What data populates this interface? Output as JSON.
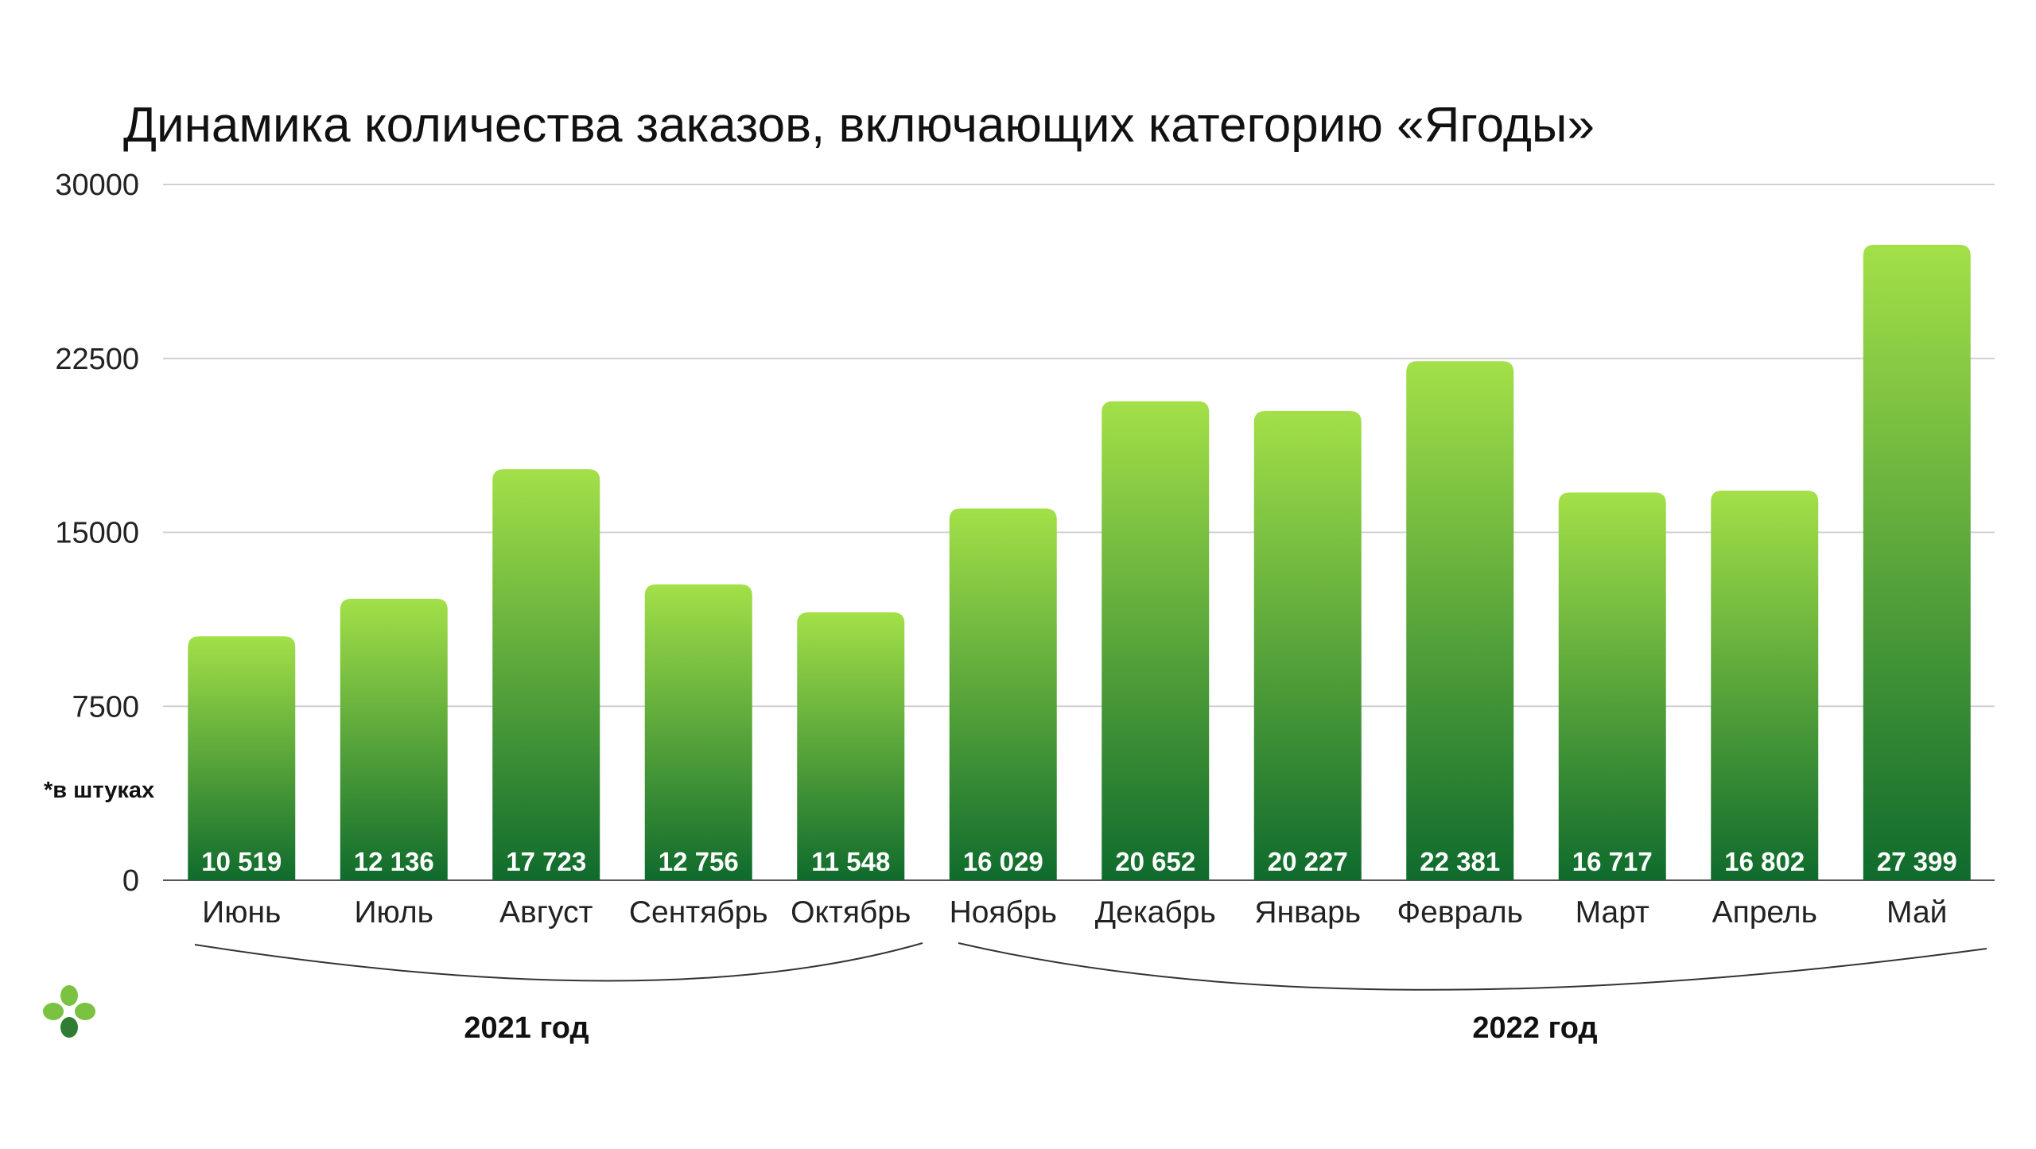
{
  "chart_data": {
    "type": "bar",
    "title": "Динамика количества заказов, включающих категорию «Ягоды»",
    "unit_note": "*в штуках",
    "categories": [
      "Июнь",
      "Июль",
      "Август",
      "Сентябрь",
      "Октябрь",
      "Ноябрь",
      "Декабрь",
      "Январь",
      "Февраль",
      "Март",
      "Апрель",
      "Май"
    ],
    "values": [
      10519,
      12136,
      17723,
      12756,
      11548,
      16029,
      20652,
      20227,
      22381,
      16717,
      16802,
      27399
    ],
    "value_labels": [
      "10 519",
      "12 136",
      "17 723",
      "12 756",
      "11 548",
      "16 029",
      "20 652",
      "20 227",
      "22 381",
      "16 717",
      "16 802",
      "27 399"
    ],
    "ylim": [
      0,
      30000
    ],
    "yticks": [
      0,
      7500,
      15000,
      22500,
      30000
    ],
    "grid": true,
    "legend": "none",
    "year_groups": [
      {
        "label": "2021 год",
        "months": [
          "Июнь",
          "Июль",
          "Август",
          "Сентябрь",
          "Октябрь"
        ]
      },
      {
        "label": "2022 год",
        "months": [
          "Ноябрь",
          "Декабрь",
          "Январь",
          "Февраль",
          "Март",
          "Апрель",
          "Май"
        ]
      }
    ],
    "colors": {
      "bar_top": "#a3e048",
      "bar_bottom": "#0f6b2d",
      "logo_light": "#7cc242",
      "logo_dark": "#2e7d32"
    }
  },
  "logo": {
    "icon": "clover-logo-icon"
  }
}
